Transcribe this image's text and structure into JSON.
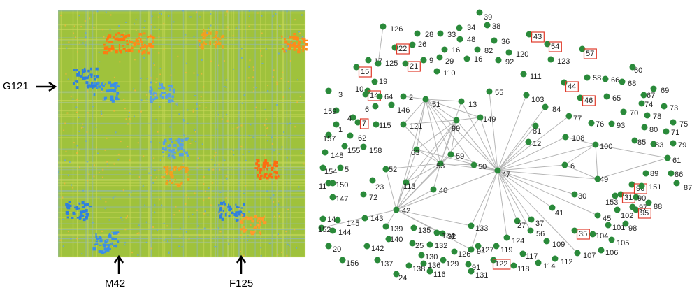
{
  "heatmap": {
    "row_label": "G121",
    "column_labels": [
      "M42",
      "F125"
    ]
  },
  "network": {
    "nodes": [
      {
        "label": "126"
      },
      {
        "label": "28"
      },
      {
        "label": "34"
      },
      {
        "label": "39"
      },
      {
        "label": "38"
      },
      {
        "label": "33"
      },
      {
        "label": "48"
      },
      {
        "label": "36"
      },
      {
        "label": "43",
        "boxed": true
      },
      {
        "label": "54",
        "boxed": true
      },
      {
        "label": "57",
        "boxed": true
      },
      {
        "label": "26"
      },
      {
        "label": "22",
        "boxed": true
      },
      {
        "label": "16"
      },
      {
        "label": "82"
      },
      {
        "label": "120"
      },
      {
        "label": "16"
      },
      {
        "label": "9"
      },
      {
        "label": "92"
      },
      {
        "label": "123"
      },
      {
        "label": "17"
      },
      {
        "label": "125"
      },
      {
        "label": "21",
        "boxed": true
      },
      {
        "label": "29"
      },
      {
        "label": "110"
      },
      {
        "label": "15",
        "boxed": true
      },
      {
        "label": "19"
      },
      {
        "label": "111"
      },
      {
        "label": "58"
      },
      {
        "label": "60"
      },
      {
        "label": "66"
      },
      {
        "label": "68"
      },
      {
        "label": "44",
        "boxed": true
      },
      {
        "label": "69"
      },
      {
        "label": "10"
      },
      {
        "label": "3"
      },
      {
        "label": "14",
        "boxed": true
      },
      {
        "label": "64"
      },
      {
        "label": "2"
      },
      {
        "label": "55"
      },
      {
        "label": "67"
      },
      {
        "label": "65"
      },
      {
        "label": "46",
        "boxed": true
      },
      {
        "label": "13"
      },
      {
        "label": "51"
      },
      {
        "label": "103"
      },
      {
        "label": "74"
      },
      {
        "label": "73"
      },
      {
        "label": "6"
      },
      {
        "label": "146"
      },
      {
        "label": "159"
      },
      {
        "label": "84"
      },
      {
        "label": "70"
      },
      {
        "label": "78"
      },
      {
        "label": "149"
      },
      {
        "label": "4"
      },
      {
        "label": "77"
      },
      {
        "label": "76"
      },
      {
        "label": "93"
      },
      {
        "label": "75"
      },
      {
        "label": "99"
      },
      {
        "label": "121"
      },
      {
        "label": "7",
        "boxed": true
      },
      {
        "label": "115"
      },
      {
        "label": "81"
      },
      {
        "label": "80"
      },
      {
        "label": "71"
      },
      {
        "label": "1"
      },
      {
        "label": "62"
      },
      {
        "label": "157"
      },
      {
        "label": "108"
      },
      {
        "label": "85"
      },
      {
        "label": "83"
      },
      {
        "label": "79"
      },
      {
        "label": "100"
      },
      {
        "label": "12"
      },
      {
        "label": "148"
      },
      {
        "label": "155"
      },
      {
        "label": "158"
      },
      {
        "label": "63"
      },
      {
        "label": "59"
      },
      {
        "label": "50"
      },
      {
        "label": "53"
      },
      {
        "label": "47"
      },
      {
        "label": "61"
      },
      {
        "label": "6"
      },
      {
        "label": "52"
      },
      {
        "label": "154"
      },
      {
        "label": "5"
      },
      {
        "label": "89"
      },
      {
        "label": "86"
      },
      {
        "label": "49"
      },
      {
        "label": "11"
      },
      {
        "label": "150"
      },
      {
        "label": "23"
      },
      {
        "label": "113"
      },
      {
        "label": "40"
      },
      {
        "label": "30"
      },
      {
        "label": "96",
        "boxed": true
      },
      {
        "label": "151"
      },
      {
        "label": "87"
      },
      {
        "label": "147"
      },
      {
        "label": "72"
      },
      {
        "label": "31",
        "boxed": true
      },
      {
        "label": "90"
      },
      {
        "label": "153"
      },
      {
        "label": "42"
      },
      {
        "label": "27"
      },
      {
        "label": "133"
      },
      {
        "label": "32"
      },
      {
        "label": "152"
      },
      {
        "label": "97"
      },
      {
        "label": "88"
      },
      {
        "label": "95",
        "boxed": true
      },
      {
        "label": "102"
      },
      {
        "label": "41"
      },
      {
        "label": "45"
      },
      {
        "label": "141"
      },
      {
        "label": "145"
      },
      {
        "label": "143"
      },
      {
        "label": "37"
      },
      {
        "label": "101"
      },
      {
        "label": "98"
      },
      {
        "label": "144"
      },
      {
        "label": "139"
      },
      {
        "label": "135"
      },
      {
        "label": "134"
      },
      {
        "label": "94"
      },
      {
        "label": "56"
      },
      {
        "label": "35",
        "boxed": true
      },
      {
        "label": "104"
      },
      {
        "label": "140"
      },
      {
        "label": "124"
      },
      {
        "label": "109"
      },
      {
        "label": "105"
      },
      {
        "label": "132"
      },
      {
        "label": "20"
      },
      {
        "label": "142"
      },
      {
        "label": "25"
      },
      {
        "label": "127"
      },
      {
        "label": "119"
      },
      {
        "label": "126"
      },
      {
        "label": "107"
      },
      {
        "label": "106"
      },
      {
        "label": "130"
      },
      {
        "label": "117"
      },
      {
        "label": "112"
      },
      {
        "label": "156"
      },
      {
        "label": "137"
      },
      {
        "label": "136"
      },
      {
        "label": "129"
      },
      {
        "label": "91"
      },
      {
        "label": "122",
        "boxed": true
      },
      {
        "label": "118"
      },
      {
        "label": "114"
      },
      {
        "label": "138"
      },
      {
        "label": "116"
      },
      {
        "label": "131"
      },
      {
        "label": "24"
      }
    ]
  }
}
